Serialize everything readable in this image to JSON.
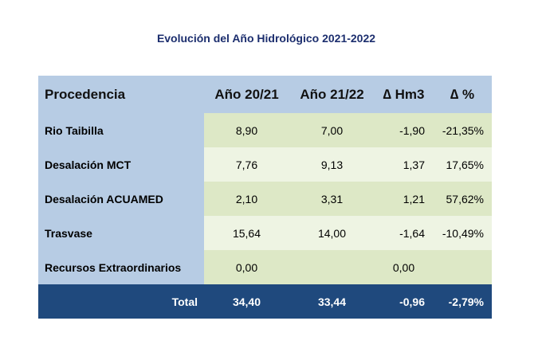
{
  "title": "Evolución del Año Hidrológico 2021-2022",
  "table": {
    "headers": [
      "Procedencia",
      "Año 20/21",
      "Año 21/22",
      "∆ Hm3",
      "∆ %"
    ],
    "rows": [
      {
        "procedencia": "Rio Taibilla",
        "y2021": "8,90",
        "y2122": "7,00",
        "delta_hm3": "-1,90",
        "delta_pct": "-21,35%"
      },
      {
        "procedencia": "Desalación MCT",
        "y2021": "7,76",
        "y2122": "9,13",
        "delta_hm3": "1,37",
        "delta_pct": "17,65%"
      },
      {
        "procedencia": "Desalación ACUAMED",
        "y2021": "2,10",
        "y2122": "3,31",
        "delta_hm3": "1,21",
        "delta_pct": "57,62%"
      },
      {
        "procedencia": "Trasvase",
        "y2021": "15,64",
        "y2122": "14,00",
        "delta_hm3": "-1,64",
        "delta_pct": "-10,49%"
      },
      {
        "procedencia": "Recursos Extraordinarios",
        "y2021": "0,00",
        "y2122": "",
        "delta_hm3": "0,00",
        "delta_pct": ""
      }
    ],
    "total": {
      "label": "Total",
      "y2021": "34,40",
      "y2122": "33,44",
      "delta_hm3": "-0,96",
      "delta_pct": "-2,79%"
    }
  },
  "colors": {
    "title": "#1c2e6e",
    "header_bg": "#b7cce4",
    "row_dark": "#dde8c6",
    "row_light": "#eef4e3",
    "total_bg": "#1f497d"
  }
}
